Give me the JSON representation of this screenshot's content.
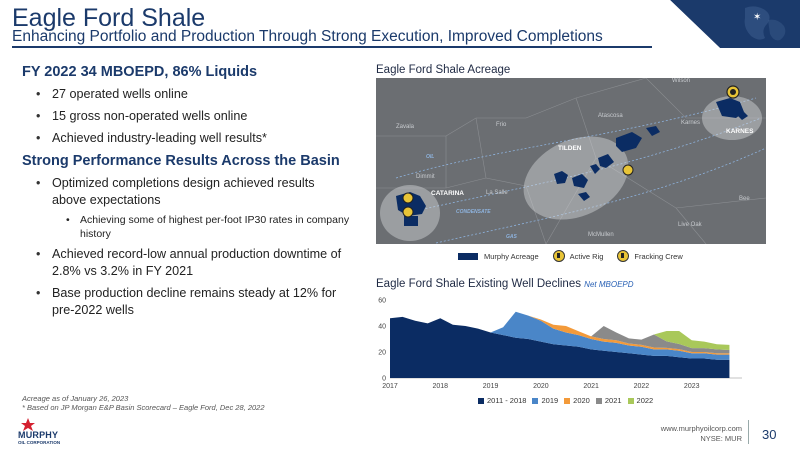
{
  "header": {
    "title": "Eagle Ford Shale",
    "subtitle": "Enhancing Portfolio and Production Through Strong Execution, Improved Completions"
  },
  "left": {
    "section1_heading": "FY 2022 34 MBOEPD, 86% Liquids",
    "section1_bullets": [
      "27 operated wells online",
      "15 gross non-operated wells online",
      "Achieved industry-leading well results*"
    ],
    "section2_heading": "Strong Performance Results Across the Basin",
    "section2_b1": "Optimized completions design achieved results above expectations",
    "section2_b1_sub": "Achieving some of highest per-foot IP30 rates in company history",
    "section2_b2": "Achieved record-low annual production downtime of 2.8% vs 3.2% in FY 2021",
    "section2_b3": "Base production decline remains steady at 12% for pre-2022 wells"
  },
  "footnotes": {
    "line1": "Acreage as of January 26, 2023",
    "line2": "* Based on JP Morgan E&P Basin Scorecard – Eagle Ford, Dec 28, 2022"
  },
  "map": {
    "title": "Eagle Ford Shale Acreage",
    "labels": {
      "wilson": "Wilson",
      "karnes_county": "Karnes",
      "karnes": "KARNES",
      "atascosa": "Atascosa",
      "frio": "Frio",
      "zavala": "Zavala",
      "tilden": "TILDEN",
      "oil": "OIL",
      "dimmit": "Dimmit",
      "catarina": "CATARINA",
      "la_salle": "La Salle",
      "condensate": "CONDENSATE",
      "bee": "Bee",
      "live_oak": "Live Oak",
      "gas": "GAS",
      "mcmullen": "McMullen"
    },
    "legend": {
      "acreage": "Murphy Acreage",
      "rig": "Active Rig",
      "crew": "Fracking Crew"
    }
  },
  "chart_title": "Eagle Ford Shale Existing Well Declines",
  "chart_unit": "Net MBOEPD",
  "chart_data": {
    "type": "area",
    "stacked": true,
    "ylim": [
      0,
      60
    ],
    "yticks": [
      0,
      20,
      40,
      60
    ],
    "xticks": [
      "2017",
      "2018",
      "2019",
      "2020",
      "2021",
      "2022",
      "2023"
    ],
    "x": [
      2017.0,
      2017.25,
      2017.5,
      2017.75,
      2018.0,
      2018.25,
      2018.5,
      2018.75,
      2019.0,
      2019.25,
      2019.5,
      2019.75,
      2020.0,
      2020.25,
      2020.5,
      2020.75,
      2021.0,
      2021.25,
      2021.5,
      2021.75,
      2022.0,
      2022.25,
      2022.5,
      2022.75,
      2023.0,
      2023.25,
      2023.5,
      2023.75
    ],
    "series": [
      {
        "name": "2011 - 2018",
        "color": "#0b2c63",
        "values": [
          46,
          47,
          44,
          42,
          46,
          41,
          40,
          38,
          35,
          33,
          31,
          30,
          28,
          26,
          25,
          24,
          22,
          21,
          20,
          19,
          18,
          17,
          17,
          16,
          15,
          15,
          14,
          14
        ]
      },
      {
        "name": "2019",
        "color": "#4a86c8",
        "values": [
          0,
          0,
          0,
          0,
          0,
          0,
          0,
          0,
          0,
          6,
          20,
          18,
          16,
          12,
          10,
          9,
          8,
          7,
          7,
          6,
          6,
          5,
          5,
          5,
          4,
          4,
          4,
          4
        ]
      },
      {
        "name": "2020",
        "color": "#f39a3a",
        "values": [
          0,
          0,
          0,
          0,
          0,
          0,
          0,
          0,
          0,
          0,
          0,
          0,
          1,
          3,
          5,
          3,
          2,
          2,
          2,
          1.5,
          1.5,
          1.5,
          1.2,
          1.2,
          1,
          1,
          1,
          1
        ]
      },
      {
        "name": "2021",
        "color": "#8a8a8a",
        "values": [
          0,
          0,
          0,
          0,
          0,
          0,
          0,
          0,
          0,
          0,
          0,
          0,
          0,
          0,
          0,
          0,
          0,
          10,
          6,
          4,
          4,
          10,
          5,
          4,
          3,
          3,
          3,
          2.5
        ]
      },
      {
        "name": "2022",
        "color": "#a9c85a",
        "values": [
          0,
          0,
          0,
          0,
          0,
          0,
          0,
          0,
          0,
          0,
          0,
          0,
          0,
          0,
          0,
          0,
          0,
          0,
          0,
          0,
          0,
          0,
          8,
          10,
          6,
          5,
          4,
          4
        ]
      }
    ]
  },
  "footer": {
    "logo_text": "MURPHY",
    "logo_sub": "OIL CORPORATION",
    "website": "www.murphyoilcorp.com",
    "ticker": "NYSE: MUR",
    "page": "30"
  },
  "colors": {
    "brand": "#1b3a6b",
    "map_bg": "#6b6e72",
    "acreage": "#0b2c63",
    "rig": "#e8c437"
  }
}
